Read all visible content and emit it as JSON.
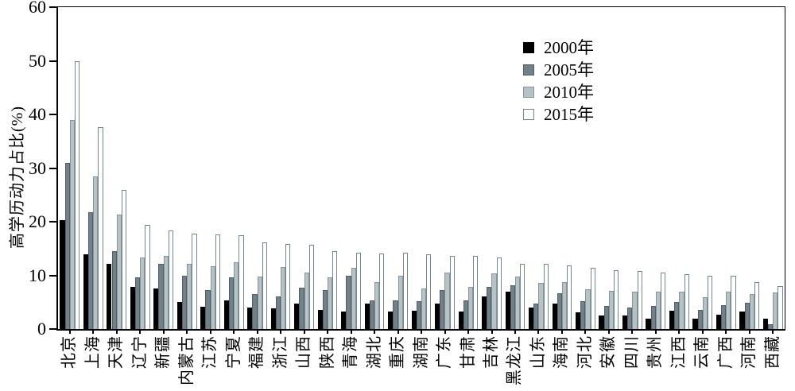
{
  "figure": {
    "background": "#ffffff",
    "axis_color": "#000000"
  },
  "chart_data": {
    "type": "bar",
    "title": "",
    "xlabel": "",
    "ylabel": "高学历动力占比(%)",
    "ylim": [
      0,
      60
    ],
    "yticks": [
      0,
      10,
      20,
      30,
      40,
      50,
      60
    ],
    "grid": false,
    "legend_position": "upper-right-inside",
    "categories": [
      "北京",
      "上海",
      "天津",
      "辽宁",
      "新疆",
      "内蒙古",
      "江苏",
      "宁夏",
      "福建",
      "浙江",
      "山西",
      "陕西",
      "青海",
      "湖北",
      "重庆",
      "湖南",
      "广东",
      "甘肃",
      "吉林",
      "黑龙江",
      "山东",
      "海南",
      "河北",
      "安徽",
      "四川",
      "贵州",
      "江西",
      "云南",
      "广西",
      "河南",
      "西藏"
    ],
    "series": [
      {
        "name": "2000年",
        "fill": "#000000",
        "border": "#000000",
        "values": [
          20.3,
          13.9,
          12.2,
          7.8,
          7.6,
          5.0,
          4.1,
          5.4,
          4.0,
          3.9,
          4.7,
          3.6,
          3.3,
          4.8,
          3.3,
          3.4,
          4.8,
          3.2,
          6.1,
          6.9,
          4.0,
          4.8,
          3.1,
          2.5,
          2.5,
          1.9,
          3.4,
          2.0,
          2.6,
          3.2,
          1.9
        ]
      },
      {
        "name": "2005年",
        "fill": "#71818a",
        "border": "#525e64",
        "values": [
          31.0,
          21.8,
          14.6,
          9.7,
          12.2,
          9.9,
          7.3,
          9.6,
          6.6,
          6.1,
          7.7,
          7.3,
          9.9,
          5.4,
          5.3,
          5.2,
          7.3,
          5.4,
          7.9,
          8.1,
          4.7,
          6.7,
          5.2,
          4.3,
          4.0,
          4.3,
          5.0,
          3.6,
          4.5,
          4.9,
          0.9
        ]
      },
      {
        "name": "2010年",
        "fill": "#b7c2c6",
        "border": "#86959c",
        "values": [
          39.0,
          28.4,
          21.4,
          13.4,
          13.6,
          12.2,
          11.7,
          12.5,
          9.8,
          11.5,
          10.6,
          9.7,
          11.4,
          8.8,
          10.0,
          7.5,
          10.5,
          7.9,
          10.4,
          9.8,
          8.6,
          8.7,
          7.4,
          7.1,
          6.9,
          7.0,
          7.0,
          6.0,
          7.0,
          6.5,
          6.8
        ]
      },
      {
        "name": "2015年",
        "fill": "#ffffff",
        "border": "#74858d",
        "values": [
          49.9,
          37.6,
          26.0,
          19.4,
          18.4,
          17.8,
          17.6,
          17.5,
          16.2,
          15.9,
          15.7,
          14.5,
          14.2,
          14.1,
          14.2,
          14.0,
          13.7,
          13.6,
          13.3,
          12.2,
          12.1,
          11.9,
          11.4,
          11.0,
          10.8,
          10.6,
          10.3,
          10.0,
          9.9,
          8.7,
          8.0
        ]
      }
    ]
  }
}
